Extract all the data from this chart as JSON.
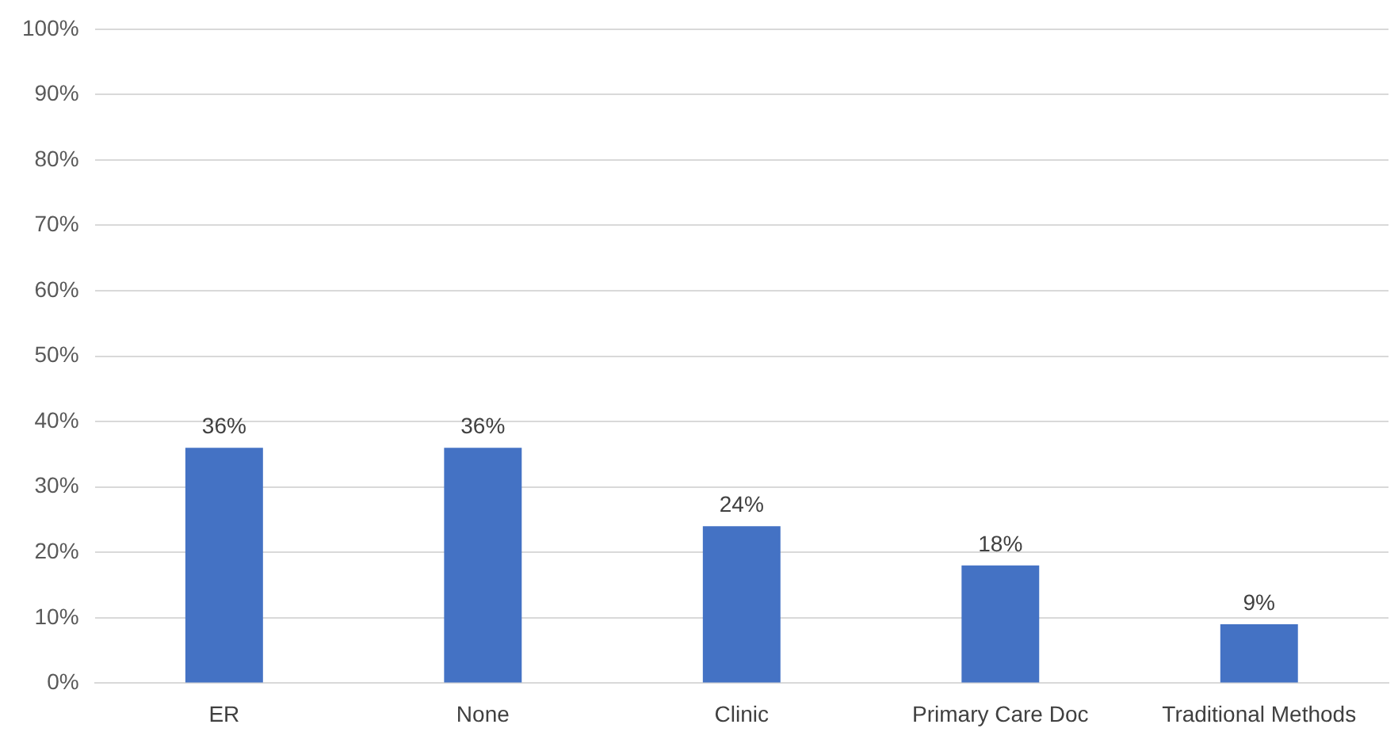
{
  "chart_data": {
    "type": "bar",
    "categories": [
      "ER",
      "None",
      "Clinic",
      "Primary Care Doc",
      "Traditional Methods"
    ],
    "values": [
      36,
      36,
      24,
      18,
      9
    ],
    "value_labels": [
      "36%",
      "36%",
      "24%",
      "18%",
      "9%"
    ],
    "color": "#4472c4",
    "ylim": [
      0,
      100
    ],
    "yticks": [
      {
        "value": 0,
        "label": "0%"
      },
      {
        "value": 10,
        "label": "10%"
      },
      {
        "value": 20,
        "label": "20%"
      },
      {
        "value": 30,
        "label": "30%"
      },
      {
        "value": 40,
        "label": "40%"
      },
      {
        "value": 50,
        "label": "50%"
      },
      {
        "value": 60,
        "label": "60%"
      },
      {
        "value": 70,
        "label": "70%"
      },
      {
        "value": 80,
        "label": "80%"
      },
      {
        "value": 90,
        "label": "90%"
      },
      {
        "value": 100,
        "label": "100%"
      }
    ],
    "grid": "y",
    "legend": false
  }
}
